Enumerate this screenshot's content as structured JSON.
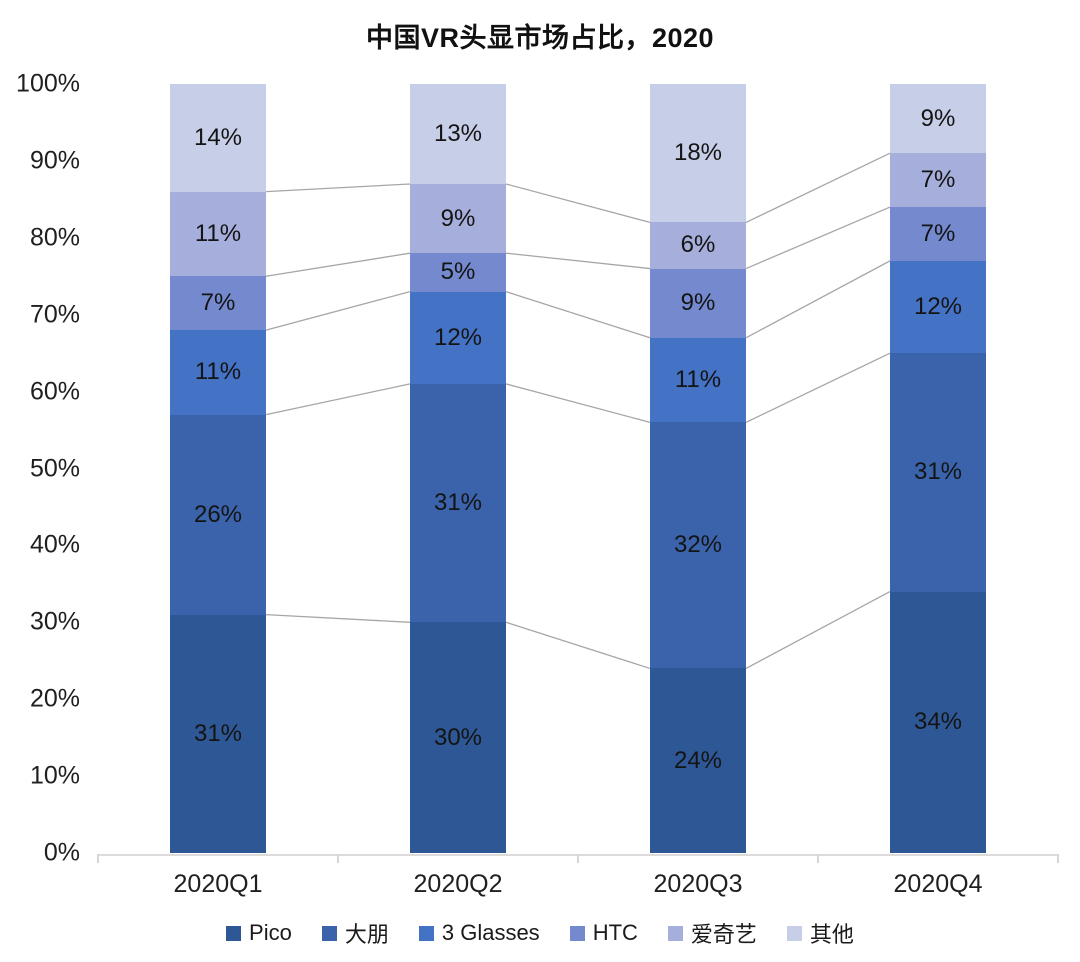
{
  "title": "中国VR头显市场占比，2020",
  "chart_data": {
    "type": "bar",
    "stacked": true,
    "percent_stacked": true,
    "title": "中国VR头显市场占比，2020",
    "categories": [
      "2020Q1",
      "2020Q2",
      "2020Q3",
      "2020Q4"
    ],
    "series": [
      {
        "name": "Pico",
        "color": "#2E5796",
        "values": [
          31,
          30,
          24,
          34
        ]
      },
      {
        "name": "大朋",
        "color": "#3A63AB",
        "values": [
          26,
          31,
          32,
          31
        ]
      },
      {
        "name": "3 Glasses",
        "color": "#4472C4",
        "values": [
          11,
          12,
          11,
          12
        ]
      },
      {
        "name": "HTC",
        "color": "#7489CE",
        "values": [
          7,
          5,
          9,
          7
        ]
      },
      {
        "name": "爱奇艺",
        "color": "#A6AFDB",
        "values": [
          11,
          9,
          6,
          7
        ]
      },
      {
        "name": "其他",
        "color": "#C7CEE8",
        "values": [
          14,
          13,
          18,
          9
        ]
      }
    ],
    "unit": "%",
    "y_ticks": [
      "0%",
      "10%",
      "20%",
      "30%",
      "40%",
      "50%",
      "60%",
      "70%",
      "80%",
      "90%",
      "100%"
    ],
    "ylim": [
      0,
      100
    ],
    "grid": false,
    "legend_position": "bottom",
    "connector_line_color": "#A6A6A6",
    "axis_line_color": "#DCDCDC",
    "data_label_color": "#141414"
  }
}
